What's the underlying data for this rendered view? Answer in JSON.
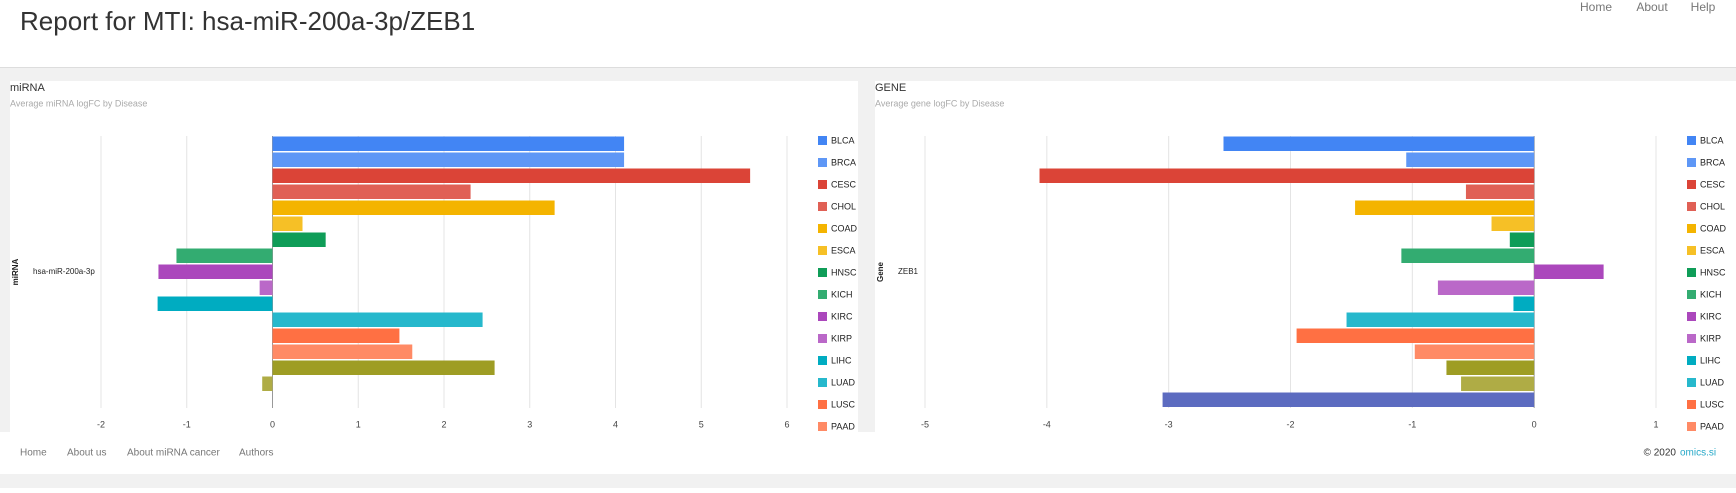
{
  "header": {
    "title": "Report for MTI: hsa-miR-200a-3p/ZEB1",
    "nav": [
      "Home",
      "About",
      "Help"
    ]
  },
  "chart_data": [
    {
      "type": "bar",
      "orientation": "horizontal",
      "title": "miRNA",
      "subtitle": "Average miRNA logFC by Disease",
      "y_label": "miRNA",
      "categories": [
        "hsa-miR-200a-3p"
      ],
      "xlim": [
        -2,
        6
      ],
      "xticks": [
        -2,
        -1,
        0,
        1,
        2,
        3,
        4,
        5,
        6
      ],
      "grid": true,
      "series": [
        {
          "name": "BLCA",
          "color": "#4285f4",
          "values": [
            4.1
          ]
        },
        {
          "name": "BRCA",
          "color": "#5e97f6",
          "values": [
            4.1
          ]
        },
        {
          "name": "CESC",
          "color": "#db4437",
          "values": [
            5.57
          ]
        },
        {
          "name": "CHOL",
          "color": "#e06055",
          "values": [
            2.31
          ]
        },
        {
          "name": "COAD",
          "color": "#f4b400",
          "values": [
            3.29
          ]
        },
        {
          "name": "ESCA",
          "color": "#f6c026",
          "values": [
            0.35
          ]
        },
        {
          "name": "HNSC",
          "color": "#0f9d58",
          "values": [
            0.62
          ]
        },
        {
          "name": "KICH",
          "color": "#33ac71",
          "values": [
            -1.12
          ]
        },
        {
          "name": "KIRC",
          "color": "#ab47bc",
          "values": [
            -1.33
          ]
        },
        {
          "name": "KIRP",
          "color": "#ba68c8",
          "values": [
            -0.15
          ]
        },
        {
          "name": "LIHC",
          "color": "#00acc1",
          "values": [
            -1.34
          ]
        },
        {
          "name": "LUAD",
          "color": "#26b8cc",
          "values": [
            2.45
          ]
        },
        {
          "name": "LUSC",
          "color": "#ff7043",
          "values": [
            1.48
          ]
        },
        {
          "name": "PAAD",
          "color": "#ff8a65",
          "values": [
            1.63
          ]
        },
        {
          "name": null,
          "color": "#9e9d24",
          "values": [
            2.59
          ]
        },
        {
          "name": null,
          "color": "#afac45",
          "values": [
            -0.12
          ]
        },
        {
          "name": null,
          "color": "#5c6bc0",
          "values": [
            null
          ]
        }
      ]
    },
    {
      "type": "bar",
      "orientation": "horizontal",
      "title": "GENE",
      "subtitle": "Average gene logFC by Disease",
      "y_label": "Gene",
      "categories": [
        "ZEB1"
      ],
      "xlim": [
        -5,
        1
      ],
      "xticks": [
        -5,
        -4,
        -3,
        -2,
        -1,
        0,
        1
      ],
      "grid": true,
      "series": [
        {
          "name": "BLCA",
          "color": "#4285f4",
          "values": [
            -2.55
          ]
        },
        {
          "name": "BRCA",
          "color": "#5e97f6",
          "values": [
            -1.05
          ]
        },
        {
          "name": "CESC",
          "color": "#db4437",
          "values": [
            -4.06
          ]
        },
        {
          "name": "CHOL",
          "color": "#e06055",
          "values": [
            -0.56
          ]
        },
        {
          "name": "COAD",
          "color": "#f4b400",
          "values": [
            -1.47
          ]
        },
        {
          "name": "ESCA",
          "color": "#f6c026",
          "values": [
            -0.35
          ]
        },
        {
          "name": "HNSC",
          "color": "#0f9d58",
          "values": [
            -0.2
          ]
        },
        {
          "name": "KICH",
          "color": "#33ac71",
          "values": [
            -1.09
          ]
        },
        {
          "name": "KIRC",
          "color": "#ab47bc",
          "values": [
            0.57
          ]
        },
        {
          "name": "KIRP",
          "color": "#ba68c8",
          "values": [
            -0.79
          ]
        },
        {
          "name": "LIHC",
          "color": "#00acc1",
          "values": [
            -0.17
          ]
        },
        {
          "name": "LUAD",
          "color": "#26b8cc",
          "values": [
            -1.54
          ]
        },
        {
          "name": "LUSC",
          "color": "#ff7043",
          "values": [
            -1.95
          ]
        },
        {
          "name": "PAAD",
          "color": "#ff8a65",
          "values": [
            -0.98
          ]
        },
        {
          "name": null,
          "color": "#9e9d24",
          "values": [
            -0.72
          ]
        },
        {
          "name": null,
          "color": "#afac45",
          "values": [
            -0.6
          ]
        },
        {
          "name": null,
          "color": "#5c6bc0",
          "values": [
            -3.05
          ]
        }
      ]
    }
  ],
  "footer": {
    "links": [
      "Home",
      "About us",
      "About miRNA cancer",
      "Authors"
    ],
    "copyright": "© 2020",
    "site": "omics.si"
  }
}
